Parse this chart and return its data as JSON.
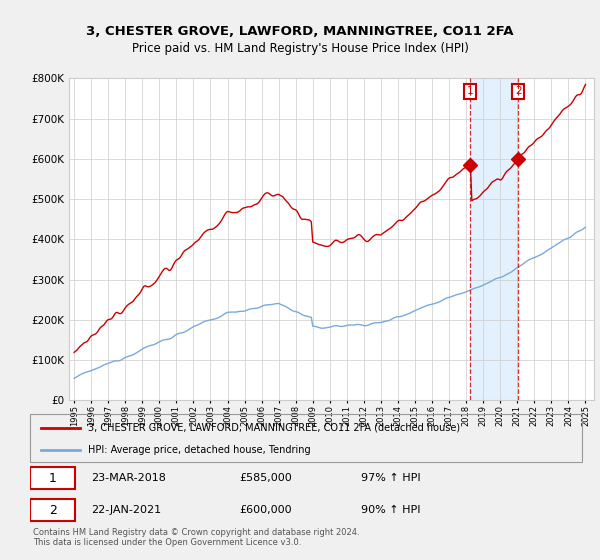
{
  "title_line1": "3, CHESTER GROVE, LAWFORD, MANNINGTREE, CO11 2FA",
  "title_line2": "Price paid vs. HM Land Registry's House Price Index (HPI)",
  "background_color": "#f0f0f0",
  "plot_bg_color": "#ffffff",
  "legend_label_red": "3, CHESTER GROVE, LAWFORD, MANNINGTREE, CO11 2FA (detached house)",
  "legend_label_blue": "HPI: Average price, detached house, Tendring",
  "footnote": "Contains HM Land Registry data © Crown copyright and database right 2024.\nThis data is licensed under the Open Government Licence v3.0.",
  "sale1_date": "23-MAR-2018",
  "sale1_price": "£585,000",
  "sale1_hpi": "97% ↑ HPI",
  "sale2_date": "22-JAN-2021",
  "sale2_price": "£600,000",
  "sale2_hpi": "90% ↑ HPI",
  "sale1_year": 2018.22,
  "sale1_value": 585000,
  "sale2_year": 2021.06,
  "sale2_value": 600000,
  "ylim_max": 800000,
  "xlim_min": 1994.7,
  "xlim_max": 2025.5,
  "red_color": "#cc0000",
  "blue_color": "#7aaadd",
  "shade_color": "#ddeeff",
  "grid_color": "#cccccc",
  "title_fontsize": 9.5,
  "subtitle_fontsize": 8.5
}
